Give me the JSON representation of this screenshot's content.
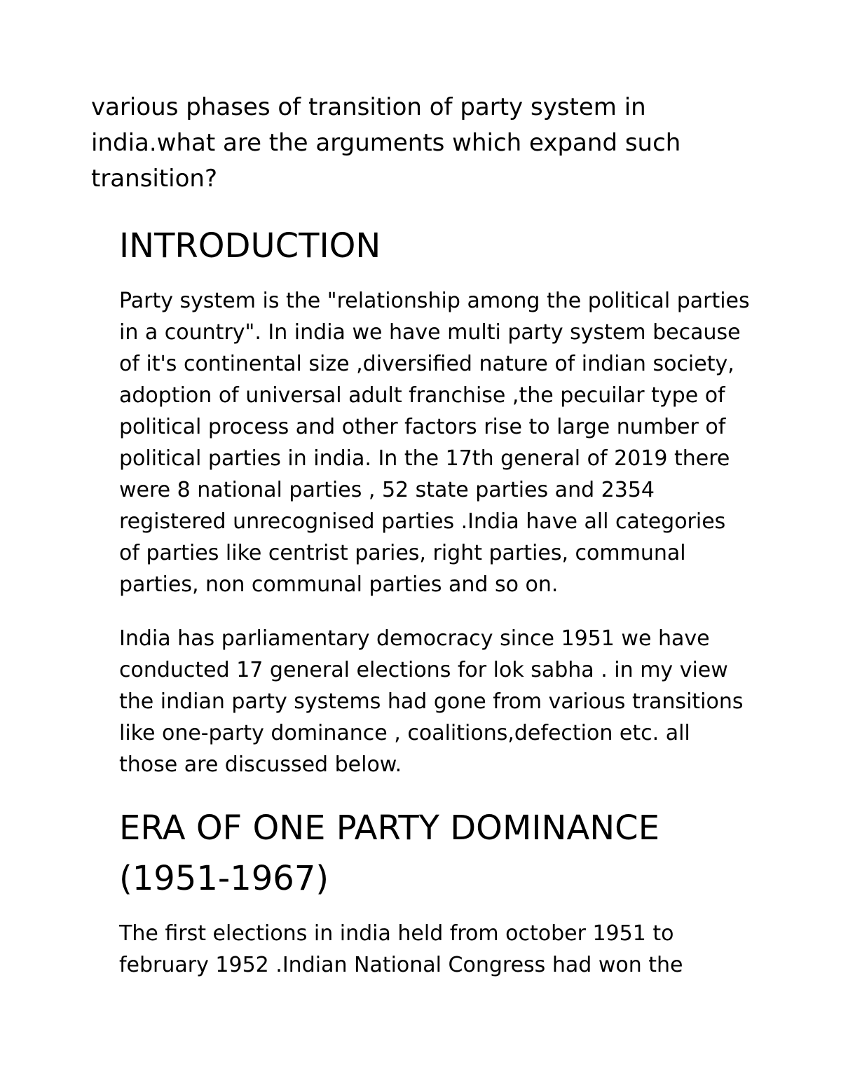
{
  "document": {
    "title": "various phases of transition of party system in india.what are the arguments which expand such transition?",
    "heading1": "INTRODUCTION",
    "para1": "Party system is the \"relationship among the political parties in a country\". In india we have multi party system because of it's continental size ,diversified nature of indian society, adoption of universal adult franchise ,the pecuilar type of political process and other factors rise to large number of political parties in india. In  the 17th general of 2019 there were 8 national parties , 52 state parties and 2354 registered unrecognised parties .India have all categories of parties like centrist paries, right parties, communal parties, non communal parties and so on.",
    "para2": "India has parliamentary democracy since 1951 we have conducted 17 general elections for lok sabha . in my view the indian party systems had gone from various transitions like one-party dominance , coalitions,defection etc. all those are discussed below.",
    "heading2": "ERA OF ONE PARTY DOMINANCE (1951-1967)",
    "para3": "The first elections in india held from october 1951 to february 1952 .Indian National Congress had won the",
    "text_color": "#000000",
    "background_color": "#ffffff",
    "title_fontsize": 34,
    "heading_fontsize": 48,
    "body_fontsize": 30
  }
}
